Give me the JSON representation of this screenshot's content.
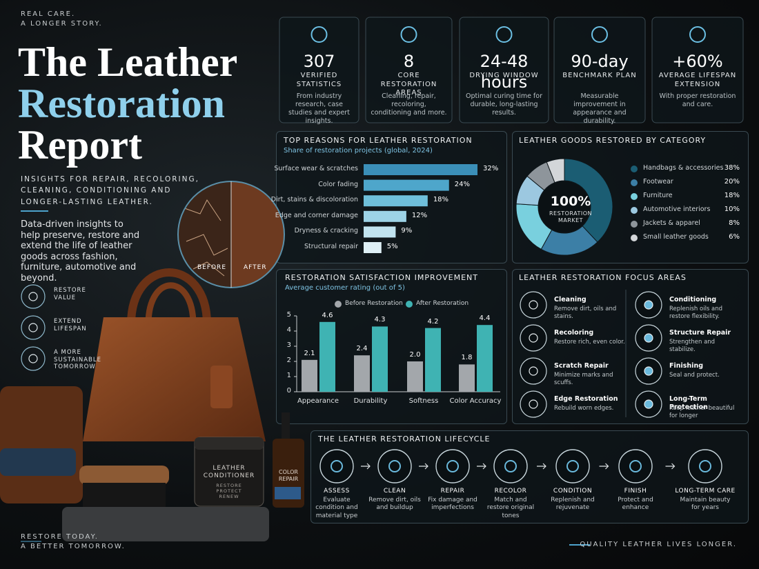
{
  "hero": {
    "kicker": [
      "REAL CARE.",
      "A LONGER STORY."
    ],
    "title": [
      "The Leather",
      "Restoration",
      "Report"
    ],
    "subtitle": "INSIGHTS FOR REPAIR, RECOLORING, CLEANING, CONDITIONING AND LONGER-LASTING LEATHER.",
    "description": "Data-driven insights to help preserve, restore and extend the life of leather goods across fashion, furniture, automotive and beyond.",
    "benefits": [
      "RESTORE VALUE",
      "EXTEND LIFESPAN",
      "A MORE SUSTAINABLE TOMORROW"
    ],
    "comparison": [
      "BEFORE",
      "AFTER"
    ],
    "products": {
      "conditioner": "LEATHER CONDITIONER",
      "conditioner_tagline": "RESTORE PROTECT RENEW",
      "color_repair": "COLOR REPAIR"
    }
  },
  "stats": [
    {
      "value": "307",
      "label": "VERIFIED STATISTICS",
      "description": "From industry research, case studies and expert insights."
    },
    {
      "value": "8",
      "label": "CORE RESTORATION AREAS",
      "description": "Cleaning, repair, recoloring, conditioning and more."
    },
    {
      "value": "24-48 hours",
      "label": "DRYING WINDOW",
      "description": "Optimal curing time for durable, long-lasting results."
    },
    {
      "value": "90-day",
      "label": "BENCHMARK PLAN",
      "description": "Measurable improvement in appearance and durability."
    },
    {
      "value": "+60%",
      "label": "AVERAGE LIFESPAN EXTENSION",
      "description": "With proper restoration and care."
    }
  ],
  "chart_data": [
    {
      "type": "bar",
      "orientation": "horizontal",
      "title": "TOP REASONS FOR LEATHER RESTORATION",
      "subtitle": "Share of restoration projects (global, 2024)",
      "categories": [
        "Surface wear & scratches",
        "Color fading",
        "Dirt, stains & discoloration",
        "Edge and corner damage",
        "Dryness & cracking",
        "Structural repair"
      ],
      "values": [
        32,
        24,
        18,
        12,
        9,
        5
      ],
      "value_labels": [
        "32%",
        "24%",
        "18%",
        "12%",
        "9%",
        "5%"
      ],
      "colors": [
        "#3b8fb8",
        "#4ea6cb",
        "#6fbfda",
        "#9dd3e6",
        "#c1e3ef",
        "#dff0f6"
      ]
    },
    {
      "type": "donut",
      "title": "LEATHER GOODS RESTORED BY CATEGORY",
      "center_value": "100%",
      "center_label": "RESTORATION MARKET",
      "categories": [
        "Handbags & accessories",
        "Footwear",
        "Furniture",
        "Automotive interiors",
        "Jackets & apparel",
        "Small leather goods"
      ],
      "values": [
        38,
        20,
        18,
        10,
        8,
        6
      ],
      "value_labels": [
        "38%",
        "20%",
        "18%",
        "10%",
        "8%",
        "6%"
      ],
      "colors": [
        "#1b5d73",
        "#3c7fa6",
        "#79d0de",
        "#9cc8e0",
        "#8e959b",
        "#d3d6d9"
      ]
    },
    {
      "type": "bar",
      "title": "RESTORATION SATISFACTION IMPROVEMENT",
      "subtitle": "Average customer rating (out of 5)",
      "categories": [
        "Appearance",
        "Durability",
        "Softness",
        "Color Accuracy"
      ],
      "series": [
        {
          "name": "Before Restoration",
          "color": "#a3a7ab",
          "values": [
            2.1,
            2.4,
            2.0,
            1.8
          ],
          "value_labels": [
            "2.1",
            "2.4",
            "2.0",
            "1.8"
          ]
        },
        {
          "name": "After Restoration",
          "color": "#3fb3b3",
          "values": [
            4.6,
            4.3,
            4.2,
            4.4
          ]
        }
      ],
      "ylim": [
        0,
        5
      ],
      "yticks": [
        0,
        1,
        2,
        3,
        4,
        5
      ],
      "grid": false
    }
  ],
  "focus_areas": {
    "title": "LEATHER RESTORATION FOCUS AREAS",
    "items": [
      {
        "title": "Cleaning",
        "description": "Remove dirt, oils and stains."
      },
      {
        "title": "Recoloring",
        "description": "Restore rich, even color."
      },
      {
        "title": "Scratch Repair",
        "description": "Minimize marks and scuffs."
      },
      {
        "title": "Edge Restoration",
        "description": "Rebuild worn edges."
      },
      {
        "title": "Conditioning",
        "description": "Replenish oils and restore flexibility."
      },
      {
        "title": "Structure Repair",
        "description": "Strengthen and stabilize."
      },
      {
        "title": "Finishing",
        "description": "Seal and protect."
      },
      {
        "title": "Long-Term Protection",
        "description": "Keep leather beautiful for longer"
      }
    ]
  },
  "lifecycle": {
    "title": "THE LEATHER RESTORATION LIFECYCLE",
    "steps": [
      {
        "title": "ASSESS",
        "description": "Evaluate condition and material type"
      },
      {
        "title": "CLEAN",
        "description": "Remove dirt, oils and buildup"
      },
      {
        "title": "REPAIR",
        "description": "Fix damage and imperfections"
      },
      {
        "title": "RECOLOR",
        "description": "Match and restore original tones"
      },
      {
        "title": "CONDITION",
        "description": "Replenish and rejuvenate"
      },
      {
        "title": "FINISH",
        "description": "Protect and enhance"
      },
      {
        "title": "LONG-TERM CARE",
        "description": "Maintain beauty for years"
      }
    ]
  },
  "footer": {
    "left": [
      "RESTORE TODAY.",
      "A BETTER TOMORROW."
    ],
    "right": "QUALITY LEATHER LIVES LONGER."
  }
}
